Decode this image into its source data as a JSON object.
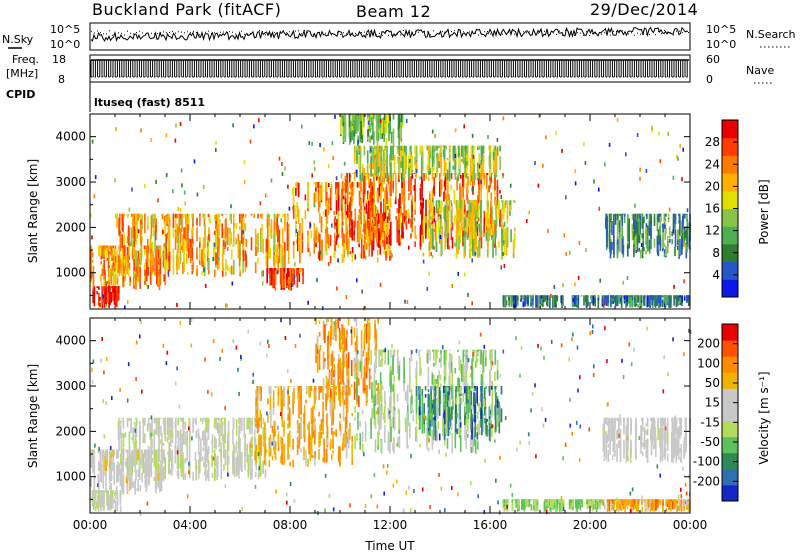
{
  "header": {
    "station": "Buckland Park (fitACF)",
    "beam": "Beam 12",
    "date": "29/Dec/2014"
  },
  "noise_panel": {
    "left_label": "N.Sky",
    "right_label": "N.Search",
    "left_ticks": [
      "10^5",
      "10^0"
    ],
    "right_ticks": [
      "10^5",
      "10^0"
    ]
  },
  "freq_panel": {
    "left_label_line1": "Freq.",
    "left_label_line2": "[MHz]",
    "right_label": "Nave",
    "left_ticks": [
      "18",
      "8"
    ],
    "right_ticks": [
      "60",
      "0"
    ]
  },
  "cpid": {
    "label": "CPID",
    "value": "ltuseq (fast) 8511"
  },
  "chart_data": [
    {
      "type": "heatmap",
      "name": "power",
      "ylabel": "Slant Range [km]",
      "xlabel": "",
      "xlim_hours": [
        0,
        24
      ],
      "ylim_km": [
        200,
        4500
      ],
      "y_ticks": [
        "1000",
        "2000",
        "3000",
        "4000"
      ],
      "colorbar_label": "Power [dB]",
      "colorbar_ticks": [
        "28",
        "24",
        "20",
        "16",
        "12",
        "8",
        "4"
      ],
      "colorbar_colors": [
        "#0a19e6",
        "#2856c8",
        "#2e7d32",
        "#4caf50",
        "#8bc34a",
        "#e0e000",
        "#ffb000",
        "#ff7a00",
        "#ff3c00",
        "#e60000"
      ],
      "regions": [
        {
          "t0": 0.0,
          "t1": 3.0,
          "r0": 600,
          "r1": 1600,
          "level": [
            0.5,
            0.9
          ]
        },
        {
          "t0": 0.0,
          "t1": 1.2,
          "r0": 220,
          "r1": 700,
          "level": [
            0.8,
            1.0
          ]
        },
        {
          "t0": 1.0,
          "t1": 8.0,
          "r0": 900,
          "r1": 2300,
          "level": [
            0.45,
            0.9
          ]
        },
        {
          "t0": 7.0,
          "t1": 8.5,
          "r0": 600,
          "r1": 1100,
          "level": [
            0.75,
            1.0
          ]
        },
        {
          "t0": 8.0,
          "t1": 12.0,
          "r0": 1200,
          "r1": 3000,
          "level": [
            0.5,
            0.95
          ]
        },
        {
          "t0": 10.0,
          "t1": 16.5,
          "r0": 1500,
          "r1": 3200,
          "level": [
            0.55,
            1.0
          ]
        },
        {
          "t0": 10.5,
          "t1": 16.5,
          "r0": 3000,
          "r1": 3800,
          "level": [
            0.3,
            0.7
          ]
        },
        {
          "t0": 10.0,
          "t1": 12.5,
          "r0": 3800,
          "r1": 4500,
          "level": [
            0.25,
            0.55
          ]
        },
        {
          "t0": 13.5,
          "t1": 17.0,
          "r0": 1300,
          "r1": 2600,
          "level": [
            0.35,
            0.7
          ]
        },
        {
          "t0": 16.5,
          "t1": 24.0,
          "r0": 220,
          "r1": 500,
          "level": [
            0.05,
            0.4
          ]
        },
        {
          "t0": 20.5,
          "t1": 24.0,
          "r0": 1300,
          "r1": 2300,
          "level": [
            0.1,
            0.5
          ]
        }
      ]
    },
    {
      "type": "heatmap",
      "name": "velocity",
      "ylabel": "Slant Range [km]",
      "xlabel": "Time UT",
      "xlim_hours": [
        0,
        24
      ],
      "ylim_km": [
        200,
        4500
      ],
      "x_ticks": [
        "00:00",
        "04:00",
        "08:00",
        "12:00",
        "16:00",
        "20:00",
        "00:00"
      ],
      "y_ticks": [
        "1000",
        "2000",
        "3000",
        "4000"
      ],
      "colorbar_label": "Velocity [m s⁻¹]",
      "colorbar_ticks": [
        "200",
        "100",
        "50",
        "15",
        "-15",
        "-50",
        "-100",
        "-200"
      ],
      "colorbar_colors": [
        "#1428c8",
        "#2e6fb0",
        "#2e8b57",
        "#5cc35c",
        "#b4dc5a",
        "#c8c8c8",
        "#c8c8c8",
        "#f0b400",
        "#ff8c00",
        "#ff5000",
        "#e60000"
      ],
      "regions": [
        {
          "t0": 0.0,
          "t1": 3.0,
          "r0": 600,
          "r1": 1600,
          "level": [
            0.45,
            0.65
          ]
        },
        {
          "t0": 0.0,
          "t1": 1.2,
          "r0": 220,
          "r1": 700,
          "level": [
            0.4,
            0.6
          ]
        },
        {
          "t0": 1.0,
          "t1": 7.0,
          "r0": 900,
          "r1": 2300,
          "level": [
            0.4,
            0.6
          ]
        },
        {
          "t0": 6.5,
          "t1": 10.5,
          "r0": 1200,
          "r1": 3000,
          "level": [
            0.6,
            0.8
          ]
        },
        {
          "t0": 9.0,
          "t1": 11.5,
          "r0": 2500,
          "r1": 4500,
          "level": [
            0.6,
            0.85
          ]
        },
        {
          "t0": 10.5,
          "t1": 16.5,
          "r0": 1500,
          "r1": 3800,
          "level": [
            0.3,
            0.6
          ]
        },
        {
          "t0": 13.0,
          "t1": 16.5,
          "r0": 1800,
          "r1": 3000,
          "level": [
            0.05,
            0.4
          ]
        },
        {
          "t0": 16.5,
          "t1": 20.5,
          "r0": 220,
          "r1": 500,
          "level": [
            0.3,
            0.45
          ]
        },
        {
          "t0": 20.5,
          "t1": 24.0,
          "r0": 220,
          "r1": 500,
          "level": [
            0.6,
            0.85
          ]
        },
        {
          "t0": 20.5,
          "t1": 24.0,
          "r0": 1300,
          "r1": 2300,
          "level": [
            0.45,
            0.6
          ]
        }
      ]
    }
  ]
}
